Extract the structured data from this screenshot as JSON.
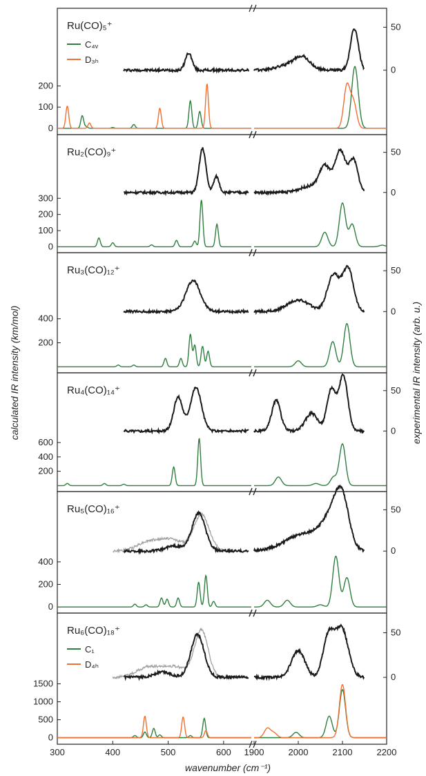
{
  "chart_data": {
    "type": "line",
    "xlabel": "wavenumber (cm⁻¹)",
    "ylabel_left": "calculated IR intensity (km/mol)",
    "ylabel_right": "experimental IR intensity (arb. u.)",
    "x_segments": [
      {
        "range": [
          300,
          650
        ],
        "ticks": [
          300,
          400,
          500,
          600
        ]
      },
      {
        "range": [
          1900,
          2200
        ],
        "ticks": [
          1900,
          2000,
          2100,
          2200
        ]
      }
    ],
    "colors": {
      "experiment": "#1a1a1a",
      "experiment_alt": "#a0a0a0",
      "calc_primary": "#2e7d3e",
      "calc_secondary": "#f07030"
    },
    "panels": [
      {
        "label": "Ru(CO)₅⁺",
        "left_ticks": [
          0,
          100,
          200
        ],
        "calc_max": 310,
        "right_ticks": [
          0,
          50
        ],
        "legend": [
          {
            "name": "C₄ᵥ",
            "color": "#2e7d3e"
          },
          {
            "name": "D₃ₕ",
            "color": "#f07030"
          }
        ],
        "exp_lines": [
          {
            "color": "#1a1a1a",
            "low": {
              "x": [
                420,
                645
              ],
              "peaks": [
                [
                  537,
                  20,
                  6
                ]
              ]
            },
            "high": {
              "x": [
                1900,
                2150
              ],
              "peaks": [
                [
                  1990,
                  8,
                  30
                ],
                [
                  2010,
                  10,
                  15
                ],
                [
                  2127,
                  48,
                  9
                ]
              ]
            }
          }
        ],
        "calc_lines": [
          {
            "color": "#2e7d3e",
            "peaks": [
              [
                345,
                60
              ],
              [
                352,
                8
              ],
              [
                400,
                4
              ],
              [
                438,
                18
              ],
              [
                540,
                130
              ],
              [
                557,
                80
              ],
              [
                2127,
                240
              ],
              [
                2133,
                70
              ]
            ]
          },
          {
            "color": "#f07030",
            "peaks": [
              [
                318,
                105
              ],
              [
                358,
                25
              ],
              [
                485,
                95
              ],
              [
                570,
                210
              ],
              [
                2110,
                200
              ],
              [
                2125,
                120
              ]
            ]
          }
        ]
      },
      {
        "label": "Ru₂(CO)₉⁺",
        "left_ticks": [
          0,
          100,
          200,
          300
        ],
        "calc_max": 380,
        "right_ticks": [
          0,
          50
        ],
        "legend": [],
        "exp_lines": [
          {
            "color": "#1a1a1a",
            "low": {
              "x": [
                420,
                645
              ],
              "peaks": [
                [
                  562,
                  55,
                  6
                ],
                [
                  587,
                  20,
                  5
                ]
              ]
            },
            "high": {
              "x": [
                1900,
                2150
              ],
              "peaks": [
                [
                  2060,
                  30,
                  12
                ],
                [
                  2095,
                  52,
                  12
                ],
                [
                  2125,
                  40,
                  10
                ],
                [
                  2030,
                  8,
                  25
                ]
              ]
            }
          }
        ],
        "calc_lines": [
          {
            "color": "#2e7d3e",
            "peaks": [
              [
                375,
                55
              ],
              [
                400,
                25
              ],
              [
                470,
                12
              ],
              [
                515,
                40
              ],
              [
                548,
                35
              ],
              [
                560,
                290
              ],
              [
                588,
                140
              ],
              [
                2060,
                90
              ],
              [
                2100,
                270
              ],
              [
                2122,
                140
              ],
              [
                2190,
                10
              ]
            ]
          }
        ]
      },
      {
        "label": "Ru₃(CO)₁₂⁺",
        "left_ticks": [
          200,
          400
        ],
        "calc_max": 520,
        "right_ticks": [
          0,
          50
        ],
        "legend": [],
        "exp_lines": [
          {
            "color": "#1a1a1a",
            "low": {
              "x": [
                420,
                645
              ],
              "peaks": [
                [
                  545,
                  38,
                  13
                ]
              ]
            },
            "high": {
              "x": [
                1900,
                2150
              ],
              "peaks": [
                [
                  2000,
                  14,
                  25
                ],
                [
                  2080,
                  45,
                  14
                ],
                [
                  2113,
                  52,
                  12
                ]
              ]
            }
          }
        ],
        "calc_lines": [
          {
            "color": "#2e7d3e",
            "peaks": [
              [
                410,
                15
              ],
              [
                438,
                15
              ],
              [
                495,
                70
              ],
              [
                523,
                70
              ],
              [
                540,
                270
              ],
              [
                548,
                180
              ],
              [
                562,
                170
              ],
              [
                572,
                130
              ],
              [
                2000,
                50
              ],
              [
                2078,
                210
              ],
              [
                2110,
                360
              ]
            ]
          }
        ]
      },
      {
        "label": "Ru₄(CO)₁₄⁺",
        "left_ticks": [
          200,
          400,
          600
        ],
        "calc_max": 860,
        "right_ticks": [
          0,
          50
        ],
        "legend": [],
        "exp_lines": [
          {
            "color": "#1a1a1a",
            "low": {
              "x": [
                420,
                645
              ],
              "peaks": [
                [
                  518,
                  42,
                  8
                ],
                [
                  550,
                  54,
                  10
                ]
              ]
            },
            "high": {
              "x": [
                1900,
                2150
              ],
              "peaks": [
                [
                  1950,
                  38,
                  10
                ],
                [
                  2030,
                  22,
                  14
                ],
                [
                  2075,
                  52,
                  10
                ],
                [
                  2102,
                  68,
                  10
                ]
              ]
            }
          }
        ],
        "calc_lines": [
          {
            "color": "#2e7d3e",
            "peaks": [
              [
                318,
                30
              ],
              [
                385,
                30
              ],
              [
                420,
                20
              ],
              [
                510,
                260
              ],
              [
                556,
                660
              ],
              [
                1955,
                120
              ],
              [
                2040,
                30
              ],
              [
                2080,
                120
              ],
              [
                2100,
                580
              ]
            ]
          }
        ]
      },
      {
        "label": "Ru₅(CO)₁₆⁺",
        "left_ticks": [
          0,
          200,
          400
        ],
        "calc_max": 560,
        "right_ticks": [
          0,
          50
        ],
        "legend": [],
        "exp_lines": [
          {
            "color": "#a0a0a0",
            "low": {
              "x": [
                400,
                610
              ],
              "peaks": [
                [
                  462,
                  10,
                  20
                ],
                [
                  505,
                  14,
                  22
                ],
                [
                  560,
                  44,
                  14
                ]
              ]
            },
            "high": null
          },
          {
            "color": "#1a1a1a",
            "low": {
              "x": [
                420,
                645
              ],
              "peaks": [
                [
                  510,
                  6,
                  15
                ],
                [
                  555,
                  46,
                  12
                ]
              ]
            },
            "high": {
              "x": [
                1900,
                2150
              ],
              "peaks": [
                [
                  2020,
                  22,
                  45
                ],
                [
                  2080,
                  38,
                  22
                ],
                [
                  2100,
                  45,
                  15
                ]
              ]
            }
          }
        ],
        "calc_lines": [
          {
            "color": "#2e7d3e",
            "peaks": [
              [
                440,
                25
              ],
              [
                460,
                20
              ],
              [
                488,
                80
              ],
              [
                498,
                70
              ],
              [
                518,
                80
              ],
              [
                555,
                220
              ],
              [
                568,
                280
              ],
              [
                582,
                50
              ],
              [
                1930,
                60
              ],
              [
                1975,
                60
              ],
              [
                2050,
                20
              ],
              [
                2085,
                450
              ],
              [
                2110,
                260
              ]
            ]
          }
        ]
      },
      {
        "label": "Ru₆(CO)₁₈⁺",
        "left_ticks": [
          0,
          500,
          1000,
          1500
        ],
        "calc_max": 1900,
        "right_ticks": [
          0,
          50
        ],
        "legend": [
          {
            "name": "C₁",
            "color": "#2e7d3e"
          },
          {
            "name": "D₄ₕ",
            "color": "#f07030"
          }
        ],
        "exp_lines": [
          {
            "color": "#a0a0a0",
            "low": {
              "x": [
                400,
                610
              ],
              "peaks": [
                [
                  462,
                  10,
                  20
                ],
                [
                  510,
                  12,
                  25
                ],
                [
                  560,
                  52,
                  12
                ]
              ]
            },
            "high": null
          },
          {
            "color": "#1a1a1a",
            "low": {
              "x": [
                420,
                645
              ],
              "peaks": [
                [
                  490,
                  6,
                  15
                ],
                [
                  553,
                  48,
                  12
                ]
              ]
            },
            "high": {
              "x": [
                1900,
                2150
              ],
              "peaks": [
                [
                  2000,
                  30,
                  15
                ],
                [
                  2068,
                  45,
                  12
                ],
                [
                  2098,
                  55,
                  15
                ]
              ]
            }
          }
        ],
        "calc_lines": [
          {
            "color": "#2e7d3e",
            "peaks": [
              [
                440,
                60
              ],
              [
                458,
                160
              ],
              [
                474,
                260
              ],
              [
                485,
                80
              ],
              [
                540,
                60
              ],
              [
                565,
                540
              ],
              [
                1995,
                150
              ],
              [
                2070,
                600
              ],
              [
                2100,
                1340
              ]
            ]
          },
          {
            "color": "#f07030",
            "peaks": [
              [
                458,
                600
              ],
              [
                527,
                580
              ],
              [
                568,
                200
              ],
              [
                1930,
                260
              ],
              [
                1945,
                130
              ],
              [
                2100,
                1480
              ]
            ]
          }
        ]
      }
    ]
  }
}
